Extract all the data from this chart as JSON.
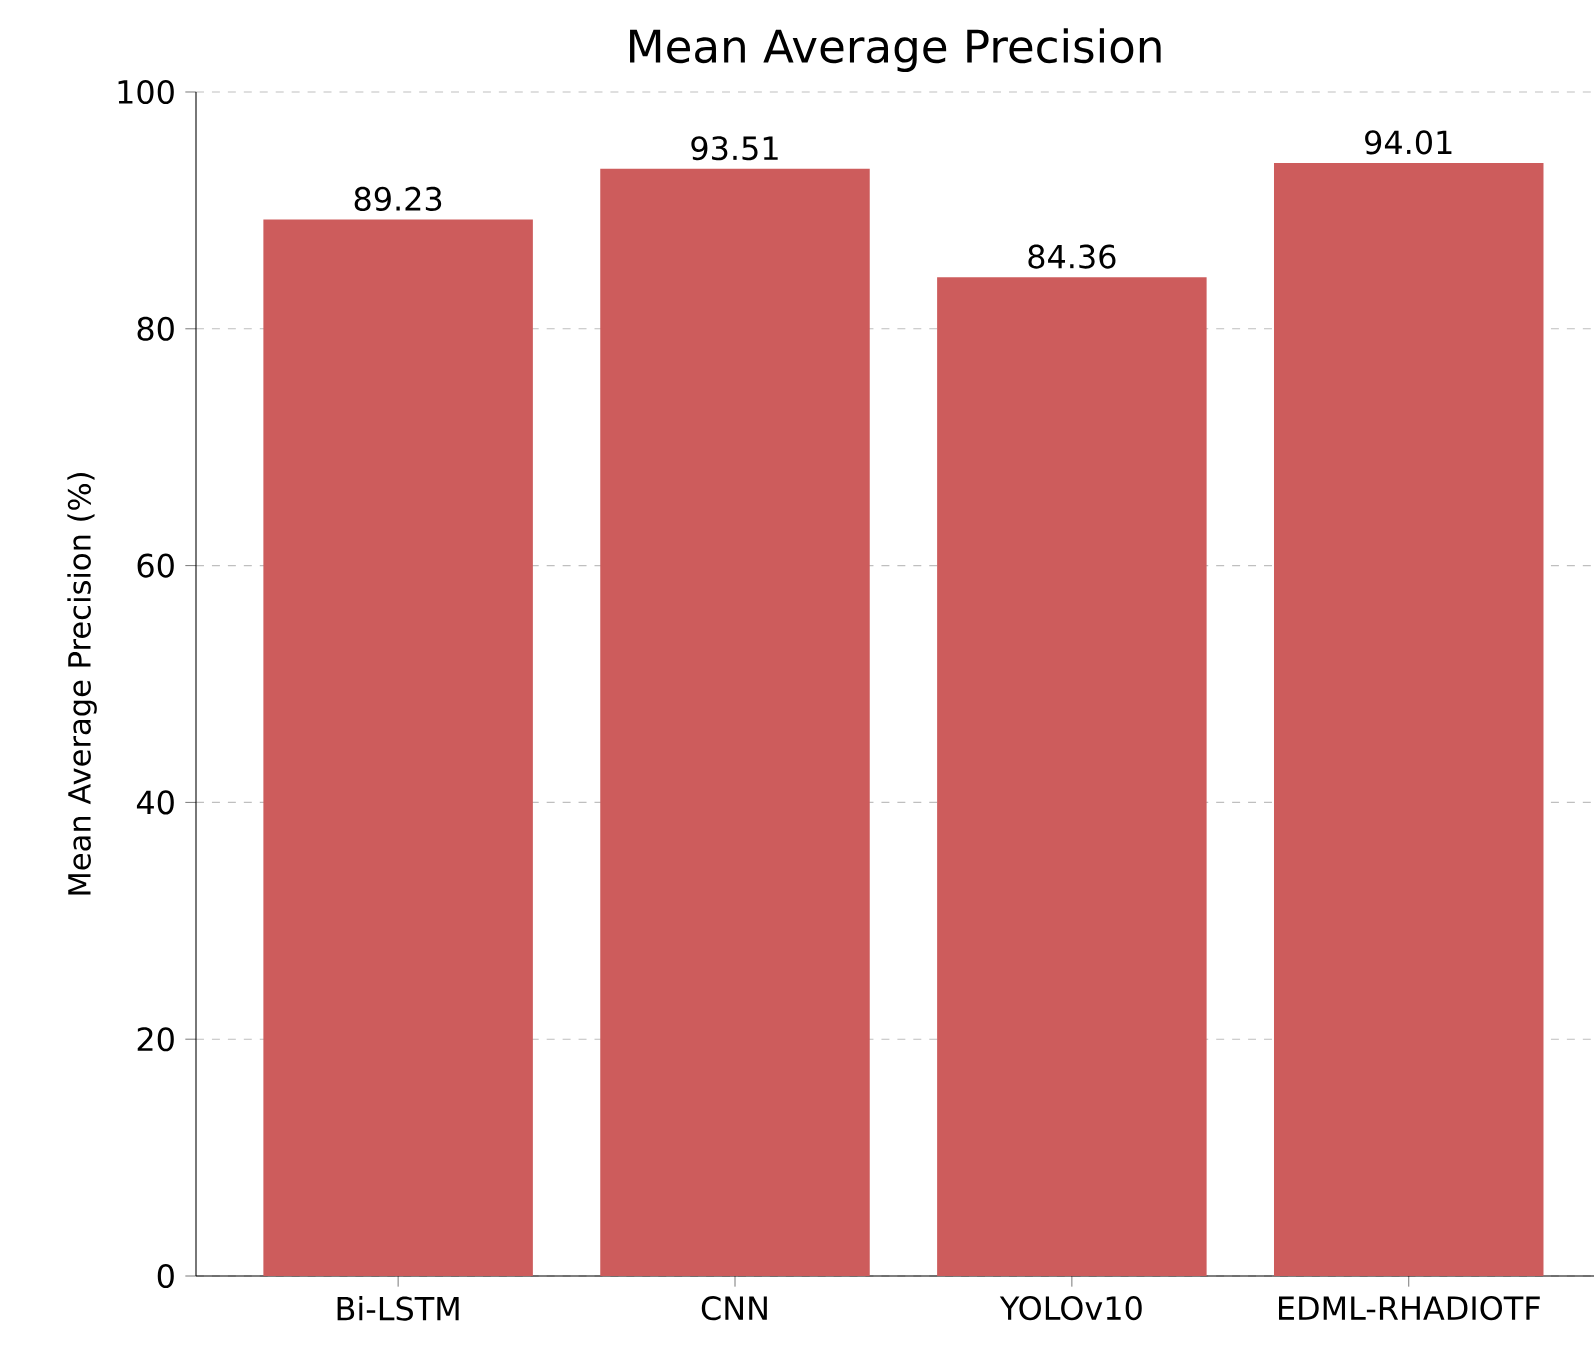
{
  "chart_data": {
    "type": "bar",
    "title": "Mean Average Precision",
    "ylabel": "Mean Average Precision (%)",
    "categories": [
      "Bi-LSTM",
      "CNN",
      "YOLOv10",
      "EDML-RHADIOTF"
    ],
    "values": [
      89.23,
      93.51,
      84.36,
      94.01
    ],
    "color": "#cd5c5c",
    "ylim": [
      0,
      100
    ],
    "yticks": [
      0,
      20,
      40,
      60,
      80,
      100
    ],
    "grid": "y",
    "data_labels": true
  }
}
